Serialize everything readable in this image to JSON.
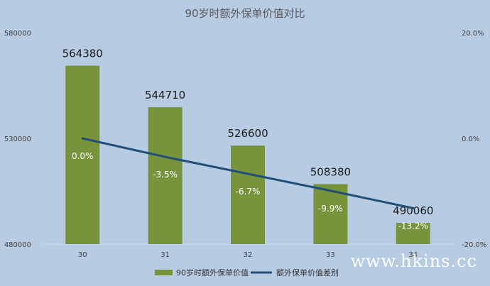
{
  "chart_data": {
    "type": "bar",
    "title": "90岁时额外保单价值对比",
    "categories": [
      "30",
      "31",
      "32",
      "33",
      "34"
    ],
    "series": [
      {
        "name": "90岁时额外保单价值",
        "type": "bar",
        "axis": "left",
        "color": "#77933c",
        "values": [
          564380,
          544710,
          526600,
          508380,
          490060
        ],
        "labels": [
          "564380",
          "544710",
          "526600",
          "508380",
          "490060"
        ]
      },
      {
        "name": "额外保单价值差别",
        "type": "line",
        "axis": "right",
        "color": "#1f4e79",
        "values": [
          0.0,
          -3.5,
          -6.7,
          -9.9,
          -13.2
        ],
        "labels": [
          "0.0%",
          "-3.5%",
          "-6.7%",
          "-9.9%",
          "-13.2%"
        ]
      }
    ],
    "left_axis": {
      "ylim": [
        480000,
        580000
      ],
      "ticks": [
        "480000",
        "530000",
        "580000"
      ]
    },
    "right_axis": {
      "ylim": [
        -20,
        20
      ],
      "ticks": [
        "-20.0%",
        "0.0%",
        "20.0%"
      ]
    },
    "grid": false,
    "legend_position": "bottom"
  },
  "watermark": "www.hkins.cc"
}
